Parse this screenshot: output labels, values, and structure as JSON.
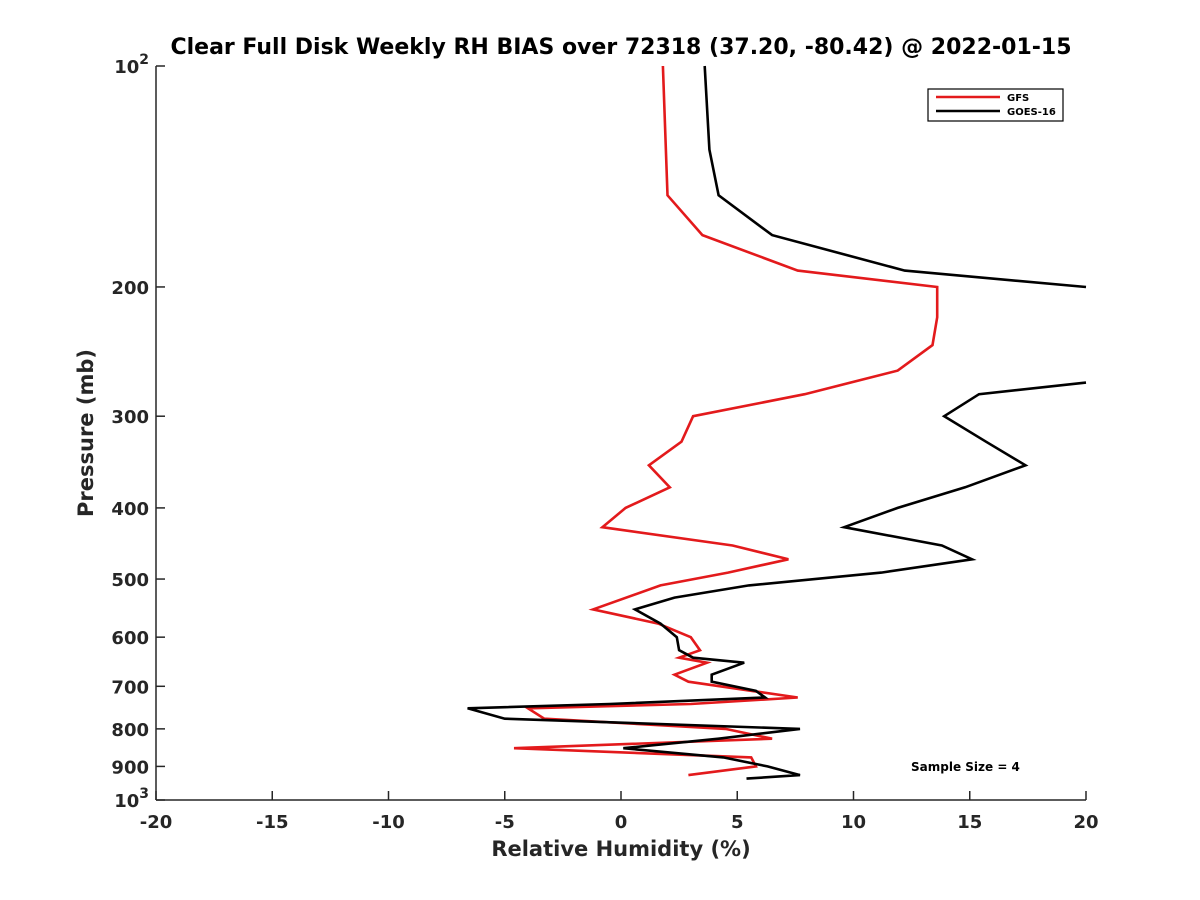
{
  "chart_data": {
    "type": "line",
    "title": "Clear Full Disk Weekly RH BIAS over 72318 (37.20, -80.42) @ 2022-01-15",
    "xlabel": "Relative Humidity (%)",
    "ylabel": "Pressure (mb)",
    "xlim": [
      -20,
      20
    ],
    "ylim": [
      100,
      1000
    ],
    "y_scale": "log",
    "y_reversed": true,
    "x_ticks": [
      "-20",
      "-15",
      "-10",
      "-5",
      "0",
      "5",
      "10",
      "15",
      "20"
    ],
    "y_ticks": [
      {
        "value": 100,
        "base": "10",
        "exp": "2"
      },
      {
        "value": 200,
        "label": "200"
      },
      {
        "value": 300,
        "label": "300"
      },
      {
        "value": 400,
        "label": "400"
      },
      {
        "value": 500,
        "label": "500"
      },
      {
        "value": 600,
        "label": "600"
      },
      {
        "value": 700,
        "label": "700"
      },
      {
        "value": 800,
        "label": "800"
      },
      {
        "value": 900,
        "label": "900"
      },
      {
        "value": 1000,
        "base": "10",
        "exp": "3"
      }
    ],
    "grid": false,
    "legend_position": "top-right",
    "annotation": "Sample Size = 4",
    "series": [
      {
        "name": "GFS",
        "color": "#e31a1c",
        "points": [
          [
            1.8,
            100
          ],
          [
            2.0,
            150
          ],
          [
            3.5,
            170
          ],
          [
            7.6,
            190
          ],
          [
            13.6,
            200
          ],
          [
            13.6,
            220
          ],
          [
            13.4,
            240
          ],
          [
            11.9,
            260
          ],
          [
            7.9,
            280
          ],
          [
            3.1,
            300
          ],
          [
            2.6,
            325
          ],
          [
            1.2,
            350
          ],
          [
            2.1,
            375
          ],
          [
            0.2,
            400
          ],
          [
            -0.8,
            425
          ],
          [
            4.8,
            450
          ],
          [
            7.2,
            470
          ],
          [
            4.6,
            490
          ],
          [
            1.7,
            510
          ],
          [
            -1.2,
            550
          ],
          [
            1.6,
            575
          ],
          [
            3.0,
            600
          ],
          [
            3.4,
            625
          ],
          [
            2.5,
            640
          ],
          [
            3.7,
            650
          ],
          [
            2.3,
            675
          ],
          [
            2.9,
            690
          ],
          [
            5.6,
            710
          ],
          [
            7.6,
            725
          ],
          [
            3.0,
            740
          ],
          [
            -4.0,
            750
          ],
          [
            -3.3,
            775
          ],
          [
            4.5,
            800
          ],
          [
            6.5,
            825
          ],
          [
            -4.6,
            850
          ],
          [
            5.6,
            875
          ],
          [
            5.8,
            900
          ],
          [
            2.9,
            925
          ]
        ]
      },
      {
        "name": "GOES-16",
        "color": "#000000",
        "points": [
          [
            3.6,
            100
          ],
          [
            3.8,
            130
          ],
          [
            4.2,
            150
          ],
          [
            6.5,
            170
          ],
          [
            12.2,
            190
          ],
          [
            20.0,
            200
          ],
          null,
          [
            20.0,
            270
          ],
          [
            15.4,
            280
          ],
          [
            13.9,
            300
          ],
          [
            15.7,
            325
          ],
          [
            17.4,
            350
          ],
          [
            14.8,
            375
          ],
          [
            11.9,
            400
          ],
          [
            9.6,
            425
          ],
          [
            13.8,
            450
          ],
          [
            15.1,
            470
          ],
          [
            11.2,
            490
          ],
          [
            5.5,
            510
          ],
          [
            2.3,
            530
          ],
          [
            0.6,
            550
          ],
          [
            1.7,
            575
          ],
          [
            2.4,
            600
          ],
          [
            2.5,
            625
          ],
          [
            3.1,
            640
          ],
          [
            5.3,
            650
          ],
          [
            3.9,
            675
          ],
          [
            3.9,
            690
          ],
          [
            5.8,
            710
          ],
          [
            6.2,
            725
          ],
          [
            -0.5,
            740
          ],
          [
            -6.6,
            750
          ],
          [
            -5.0,
            775
          ],
          [
            7.7,
            800
          ],
          [
            4.2,
            825
          ],
          [
            0.1,
            850
          ],
          [
            4.4,
            875
          ],
          [
            6.3,
            900
          ],
          [
            7.7,
            925
          ],
          [
            5.4,
            935
          ]
        ]
      }
    ]
  }
}
